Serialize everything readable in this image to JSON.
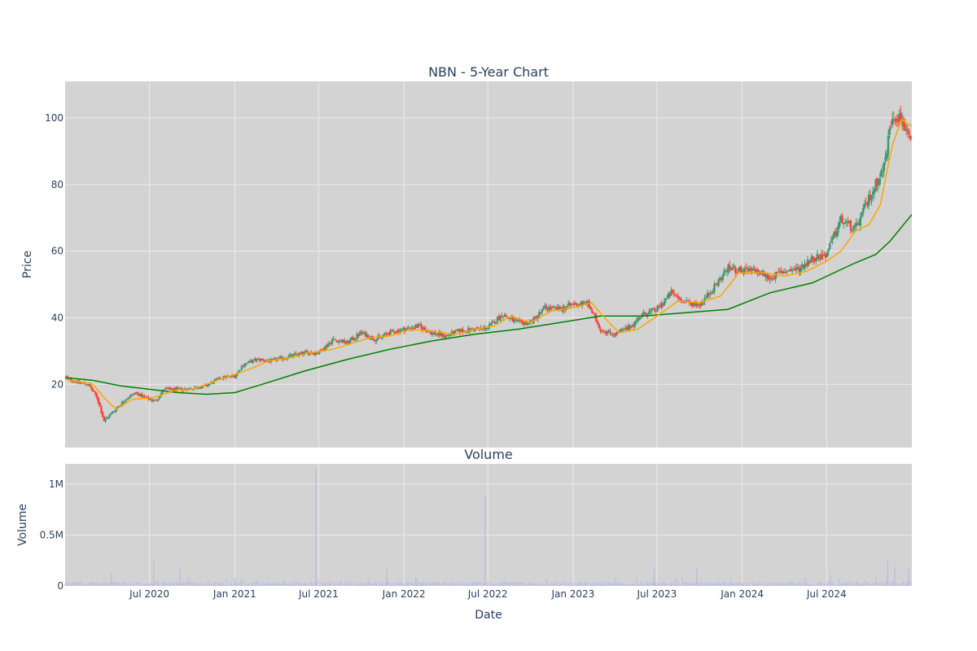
{
  "chart_data": [
    {
      "type": "candlestick",
      "title": "NBN - 5-Year Chart",
      "ylabel": "Price",
      "xlabel": "",
      "xlim": [
        "2020-01-01",
        "2025-01-01"
      ],
      "ylim": [
        1,
        111
      ],
      "yticks": [
        20,
        40,
        60,
        80,
        100
      ],
      "grid": true,
      "legend": "none",
      "colors": {
        "background": "#d3d3d3",
        "grid": "#ebebeb",
        "up": "#3d9970",
        "down": "#ff4136",
        "ma_short": "#ffa500",
        "ma_long": "#008000"
      },
      "price_path": [
        [
          "2020-01-01",
          22
        ],
        [
          "2020-02-01",
          20.5
        ],
        [
          "2020-02-20",
          20
        ],
        [
          "2020-03-10",
          16
        ],
        [
          "2020-03-25",
          9
        ],
        [
          "2020-04-15",
          12
        ],
        [
          "2020-05-10",
          15.5
        ],
        [
          "2020-06-01",
          17.5
        ],
        [
          "2020-06-20",
          16
        ],
        [
          "2020-07-15",
          15
        ],
        [
          "2020-08-01",
          18.5
        ],
        [
          "2020-09-15",
          18.5
        ],
        [
          "2020-11-01",
          19.5
        ],
        [
          "2020-12-01",
          22
        ],
        [
          "2021-01-01",
          22.5
        ],
        [
          "2021-01-20",
          26
        ],
        [
          "2021-02-20",
          27.5
        ],
        [
          "2021-03-20",
          27
        ],
        [
          "2021-05-01",
          28.5
        ],
        [
          "2021-06-01",
          29.5
        ],
        [
          "2021-07-01",
          29.5
        ],
        [
          "2021-08-01",
          33.5
        ],
        [
          "2021-09-01",
          32.5
        ],
        [
          "2021-10-01",
          35.5
        ],
        [
          "2021-11-01",
          33.5
        ],
        [
          "2021-12-01",
          35.5
        ],
        [
          "2022-01-01",
          36.5
        ],
        [
          "2022-02-01",
          37.5
        ],
        [
          "2022-03-01",
          35.5
        ],
        [
          "2022-04-01",
          34.5
        ],
        [
          "2022-05-01",
          36
        ],
        [
          "2022-06-01",
          36.5
        ],
        [
          "2022-07-01",
          37
        ],
        [
          "2022-08-01",
          41
        ],
        [
          "2022-09-01",
          38.5
        ],
        [
          "2022-10-01",
          38.5
        ],
        [
          "2022-11-01",
          43
        ],
        [
          "2022-12-01",
          42.5
        ],
        [
          "2023-01-01",
          44
        ],
        [
          "2023-02-01",
          44.5
        ],
        [
          "2023-03-01",
          36.5
        ],
        [
          "2023-04-01",
          35
        ],
        [
          "2023-05-01",
          37
        ],
        [
          "2023-06-01",
          41
        ],
        [
          "2023-07-01",
          42.5
        ],
        [
          "2023-08-01",
          47.5
        ],
        [
          "2023-09-01",
          44.5
        ],
        [
          "2023-10-01",
          44
        ],
        [
          "2023-11-01",
          49
        ],
        [
          "2023-12-01",
          55
        ],
        [
          "2024-01-01",
          54
        ],
        [
          "2024-02-01",
          54
        ],
        [
          "2024-03-01",
          52
        ],
        [
          "2024-04-01",
          54
        ],
        [
          "2024-05-01",
          54.5
        ],
        [
          "2024-06-01",
          58
        ],
        [
          "2024-07-01",
          59
        ],
        [
          "2024-08-01",
          69.5
        ],
        [
          "2024-09-01",
          66.5
        ],
        [
          "2024-10-01",
          76
        ],
        [
          "2024-11-01",
          85
        ],
        [
          "2024-11-20",
          101
        ],
        [
          "2024-12-10",
          100
        ],
        [
          "2025-01-01",
          91
        ]
      ],
      "ma_short": [
        [
          "2020-01-01",
          21.5
        ],
        [
          "2020-03-01",
          20
        ],
        [
          "2020-03-25",
          16
        ],
        [
          "2020-04-20",
          12.5
        ],
        [
          "2020-05-25",
          15.5
        ],
        [
          "2020-07-10",
          16
        ],
        [
          "2020-08-20",
          18
        ],
        [
          "2020-10-01",
          18.5
        ],
        [
          "2020-12-01",
          21.5
        ],
        [
          "2021-02-01",
          24.5
        ],
        [
          "2021-03-15",
          27
        ],
        [
          "2021-05-01",
          28
        ],
        [
          "2021-06-15",
          29.5
        ],
        [
          "2021-08-01",
          30.5
        ],
        [
          "2021-09-15",
          32.5
        ],
        [
          "2021-10-20",
          34
        ],
        [
          "2021-12-01",
          34.5
        ],
        [
          "2022-01-15",
          36.5
        ],
        [
          "2022-03-01",
          36
        ],
        [
          "2022-04-20",
          35
        ],
        [
          "2022-06-01",
          36.5
        ],
        [
          "2022-07-15",
          37.5
        ],
        [
          "2022-08-20",
          40.5
        ],
        [
          "2022-10-01",
          38.5
        ],
        [
          "2022-11-15",
          42
        ],
        [
          "2023-01-01",
          43
        ],
        [
          "2023-02-10",
          44.5
        ],
        [
          "2023-03-10",
          40
        ],
        [
          "2023-04-10",
          35.5
        ],
        [
          "2023-05-20",
          36.5
        ],
        [
          "2023-07-01",
          40.5
        ],
        [
          "2023-08-15",
          45
        ],
        [
          "2023-10-01",
          44.5
        ],
        [
          "2023-11-15",
          46.5
        ],
        [
          "2023-12-25",
          53.5
        ],
        [
          "2024-02-15",
          53.5
        ],
        [
          "2024-04-01",
          52.5
        ],
        [
          "2024-05-20",
          54
        ],
        [
          "2024-07-01",
          57
        ],
        [
          "2024-08-01",
          60
        ],
        [
          "2024-09-01",
          66
        ],
        [
          "2024-10-01",
          68
        ],
        [
          "2024-10-25",
          74
        ],
        [
          "2024-11-20",
          92
        ],
        [
          "2024-12-10",
          99.5
        ],
        [
          "2025-01-01",
          97.5
        ]
      ],
      "ma_long": [
        [
          "2020-01-01",
          22
        ],
        [
          "2020-03-01",
          21.2
        ],
        [
          "2020-05-01",
          19.5
        ],
        [
          "2020-07-01",
          18.5
        ],
        [
          "2020-09-01",
          17.5
        ],
        [
          "2020-11-01",
          17
        ],
        [
          "2021-01-01",
          17.5
        ],
        [
          "2021-03-01",
          20
        ],
        [
          "2021-06-01",
          24
        ],
        [
          "2021-09-01",
          27.5
        ],
        [
          "2021-12-01",
          30.5
        ],
        [
          "2022-03-01",
          33
        ],
        [
          "2022-06-01",
          35
        ],
        [
          "2022-09-01",
          36.5
        ],
        [
          "2022-12-01",
          38.5
        ],
        [
          "2023-03-01",
          40.5
        ],
        [
          "2023-06-01",
          40.5
        ],
        [
          "2023-09-01",
          41.5
        ],
        [
          "2023-12-01",
          42.5
        ],
        [
          "2024-03-01",
          47.5
        ],
        [
          "2024-06-01",
          50.5
        ],
        [
          "2024-09-01",
          56.5
        ],
        [
          "2024-10-15",
          59
        ],
        [
          "2024-11-15",
          63
        ],
        [
          "2025-01-01",
          71
        ]
      ]
    },
    {
      "type": "bar",
      "title": "Volume",
      "xlabel": "Date",
      "ylabel": "Volume",
      "xlim": [
        "2020-01-01",
        "2025-01-01"
      ],
      "ylim": [
        0,
        1200000
      ],
      "ytick_labels": [
        "0",
        "0.5M",
        "1M"
      ],
      "xtick_labels": [
        "Jul 2020",
        "Jan 2021",
        "Jul 2021",
        "Jan 2022",
        "Jul 2022",
        "Jan 2023",
        "Jul 2023",
        "Jan 2024",
        "Jul 2024"
      ],
      "grid": true,
      "bar_color": "#b8b8e8",
      "spikes": [
        [
          "2020-04-10",
          120000
        ],
        [
          "2020-07-10",
          240000
        ],
        [
          "2020-09-05",
          170000
        ],
        [
          "2021-06-25",
          1150000
        ],
        [
          "2021-11-25",
          160000
        ],
        [
          "2022-06-25",
          880000
        ],
        [
          "2023-06-25",
          170000
        ],
        [
          "2023-09-25",
          180000
        ],
        [
          "2024-07-10",
          110000
        ],
        [
          "2024-11-10",
          250000
        ],
        [
          "2024-11-25",
          190000
        ],
        [
          "2024-12-25",
          170000
        ]
      ]
    }
  ]
}
